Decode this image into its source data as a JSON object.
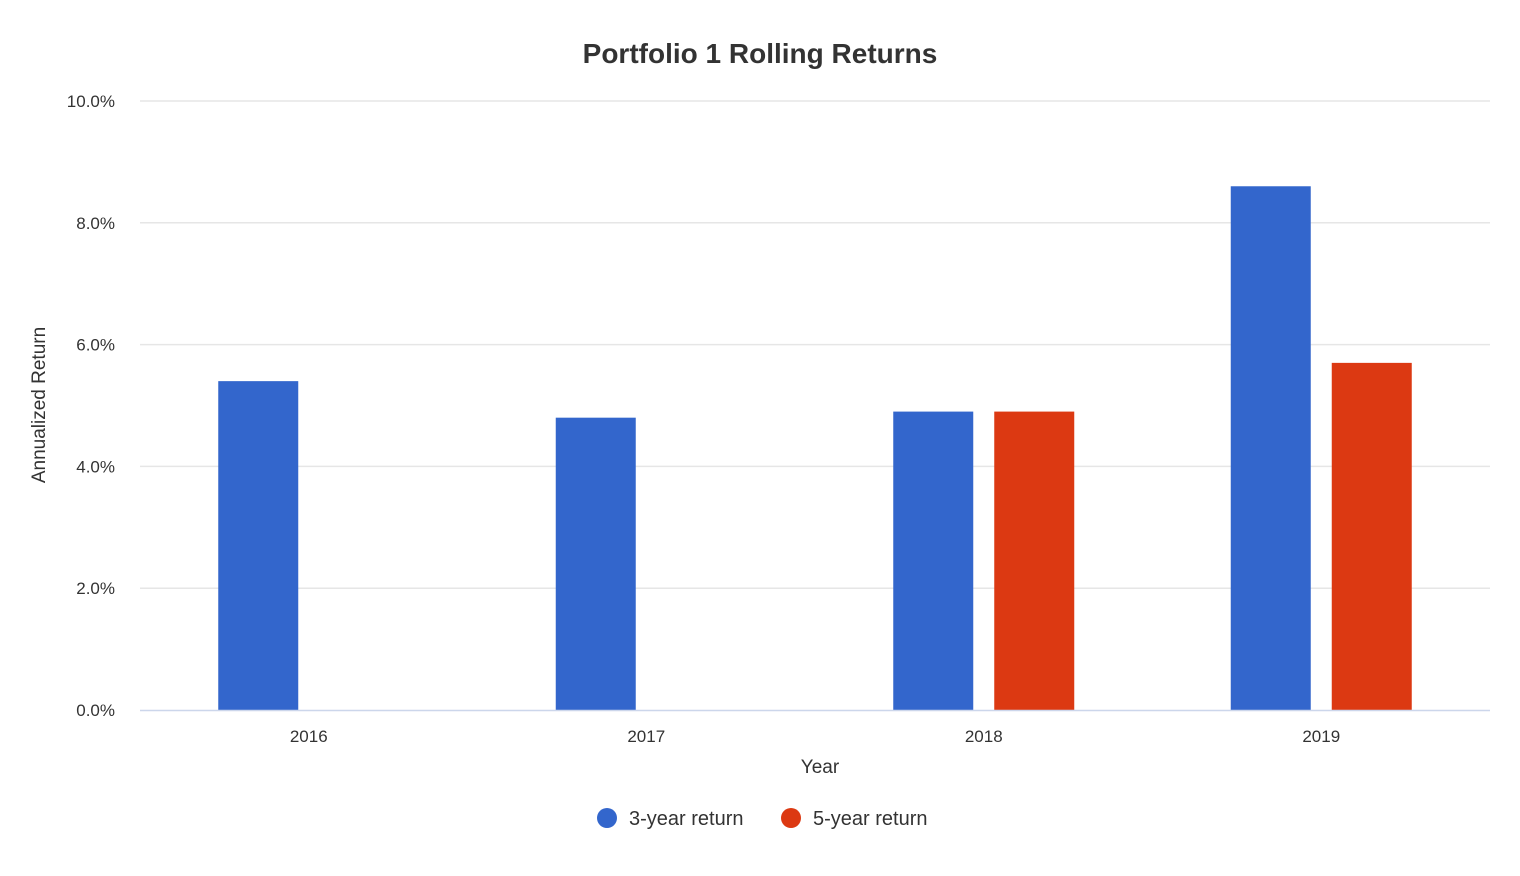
{
  "chart_data": {
    "type": "bar",
    "title": "Portfolio 1 Rolling Returns",
    "xlabel": "Year",
    "ylabel": "Annualized Return",
    "categories": [
      "2016",
      "2017",
      "2018",
      "2019"
    ],
    "series": [
      {
        "name": "3-year return",
        "color": "#3366cc",
        "values": [
          5.4,
          4.8,
          4.9,
          8.6
        ]
      },
      {
        "name": "5-year return",
        "color": "#dc3912",
        "values": [
          null,
          null,
          4.9,
          5.7
        ]
      }
    ],
    "ylim": [
      0,
      10
    ],
    "yticks": [
      "0.0%",
      "2.0%",
      "4.0%",
      "6.0%",
      "8.0%",
      "10.0%"
    ],
    "grid": true,
    "legend_position": "bottom-center"
  }
}
